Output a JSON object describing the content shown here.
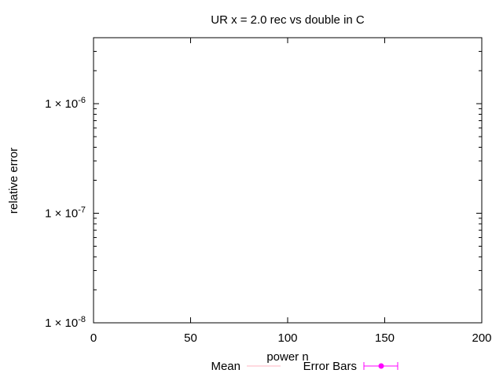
{
  "chart_data": {
    "type": "line",
    "title": "UR x = 2.0 rec vs double in C",
    "xlabel": "power n",
    "ylabel": "relative error",
    "xlim": [
      0,
      200
    ],
    "ylim": [
      1e-08,
      4e-06
    ],
    "yscale": "log",
    "x_ticks": [
      {
        "value": 0,
        "label": "0"
      },
      {
        "value": 50,
        "label": "50"
      },
      {
        "value": 100,
        "label": "100"
      },
      {
        "value": 150,
        "label": "150"
      },
      {
        "value": 200,
        "label": "200"
      }
    ],
    "y_ticks": [
      {
        "value": 1e-08,
        "mantissa": "1 × 10",
        "exp": "-8"
      },
      {
        "value": 1e-07,
        "mantissa": "1 × 10",
        "exp": "-7"
      },
      {
        "value": 1e-06,
        "mantissa": "1 × 10",
        "exp": "-6"
      }
    ],
    "grid": false,
    "legend_position": "bottom-center",
    "series": [
      {
        "name": "Mean",
        "color": "#ffb6c1",
        "style": "line",
        "x": [],
        "y": []
      },
      {
        "name": "Error Bars",
        "color": "#ff00ff",
        "style": "errorbars",
        "x": [],
        "y": []
      }
    ]
  }
}
